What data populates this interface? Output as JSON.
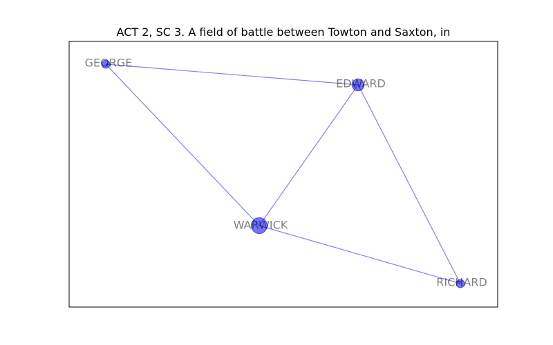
{
  "title": "ACT 2, SC 3. A field of battle between Towton and Saxton, in",
  "colors": {
    "node": "#0000ff",
    "edge": "#0000ff",
    "label": "#808080"
  },
  "nodes": [
    {
      "id": "GEORGE",
      "label": "GEORGE",
      "weight": 1
    },
    {
      "id": "EDWARD",
      "label": "EDWARD",
      "weight": 2
    },
    {
      "id": "WARWICK",
      "label": "WARWICK",
      "weight": 3
    },
    {
      "id": "RICHARD",
      "label": "RICHARD",
      "weight": 1
    }
  ],
  "edges": [
    {
      "source": "GEORGE",
      "target": "EDWARD"
    },
    {
      "source": "GEORGE",
      "target": "WARWICK"
    },
    {
      "source": "EDWARD",
      "target": "WARWICK"
    },
    {
      "source": "EDWARD",
      "target": "RICHARD"
    },
    {
      "source": "WARWICK",
      "target": "RICHARD"
    }
  ]
}
